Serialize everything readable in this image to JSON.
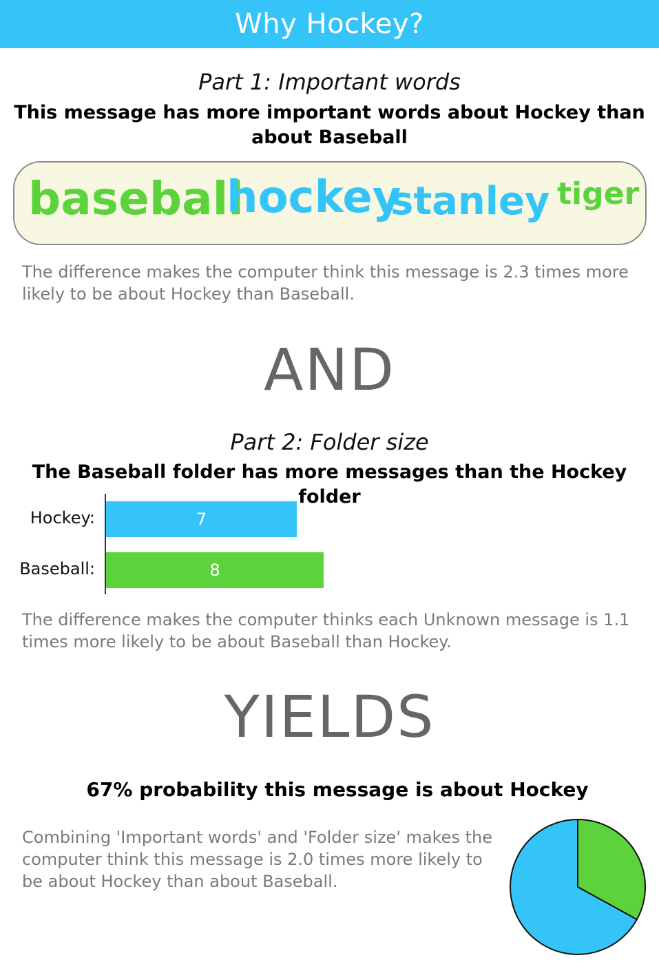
{
  "header": {
    "title": "Why Hockey?",
    "bg_color": "#35c4f8"
  },
  "part1": {
    "title": "Part 1: Important words",
    "subtitle": "This message has more important words about Hockey than about Baseball",
    "words": [
      {
        "text": "baseball",
        "color": "#5cd33c"
      },
      {
        "text": "hockey",
        "color": "#35c4f8"
      },
      {
        "text": "stanley",
        "color": "#35c4f8"
      },
      {
        "text": "tiger",
        "color": "#5cd33c"
      }
    ],
    "explanation": "The difference makes the computer think this message is 2.3 times more likely to be about Hockey than Baseball."
  },
  "connector1": "AND",
  "part2": {
    "title": "Part 2: Folder size",
    "subtitle": "The Baseball folder has more messages than the Hockey folder",
    "chart_data": {
      "type": "bar",
      "orientation": "horizontal",
      "categories": [
        "Hockey:",
        "Baseball:"
      ],
      "values": [
        7,
        8
      ],
      "colors": [
        "#35c4f8",
        "#5cd33c"
      ]
    },
    "explanation": "The difference makes the computer thinks each Unknown message is 1.1 times more likely to be about Baseball than Hockey."
  },
  "connector2": "YIELDS",
  "result": {
    "headline": "67% probability this message is about Hockey",
    "explanation": "Combining 'Important words' and 'Folder size' makes the computer think this message is 2.0 times more likely to be about Hockey than about Baseball.",
    "pie": {
      "type": "pie",
      "slices": [
        {
          "label": "Hockey",
          "value": 67,
          "color": "#35c4f8"
        },
        {
          "label": "Baseball",
          "value": 33,
          "color": "#5cd33c"
        }
      ]
    }
  }
}
